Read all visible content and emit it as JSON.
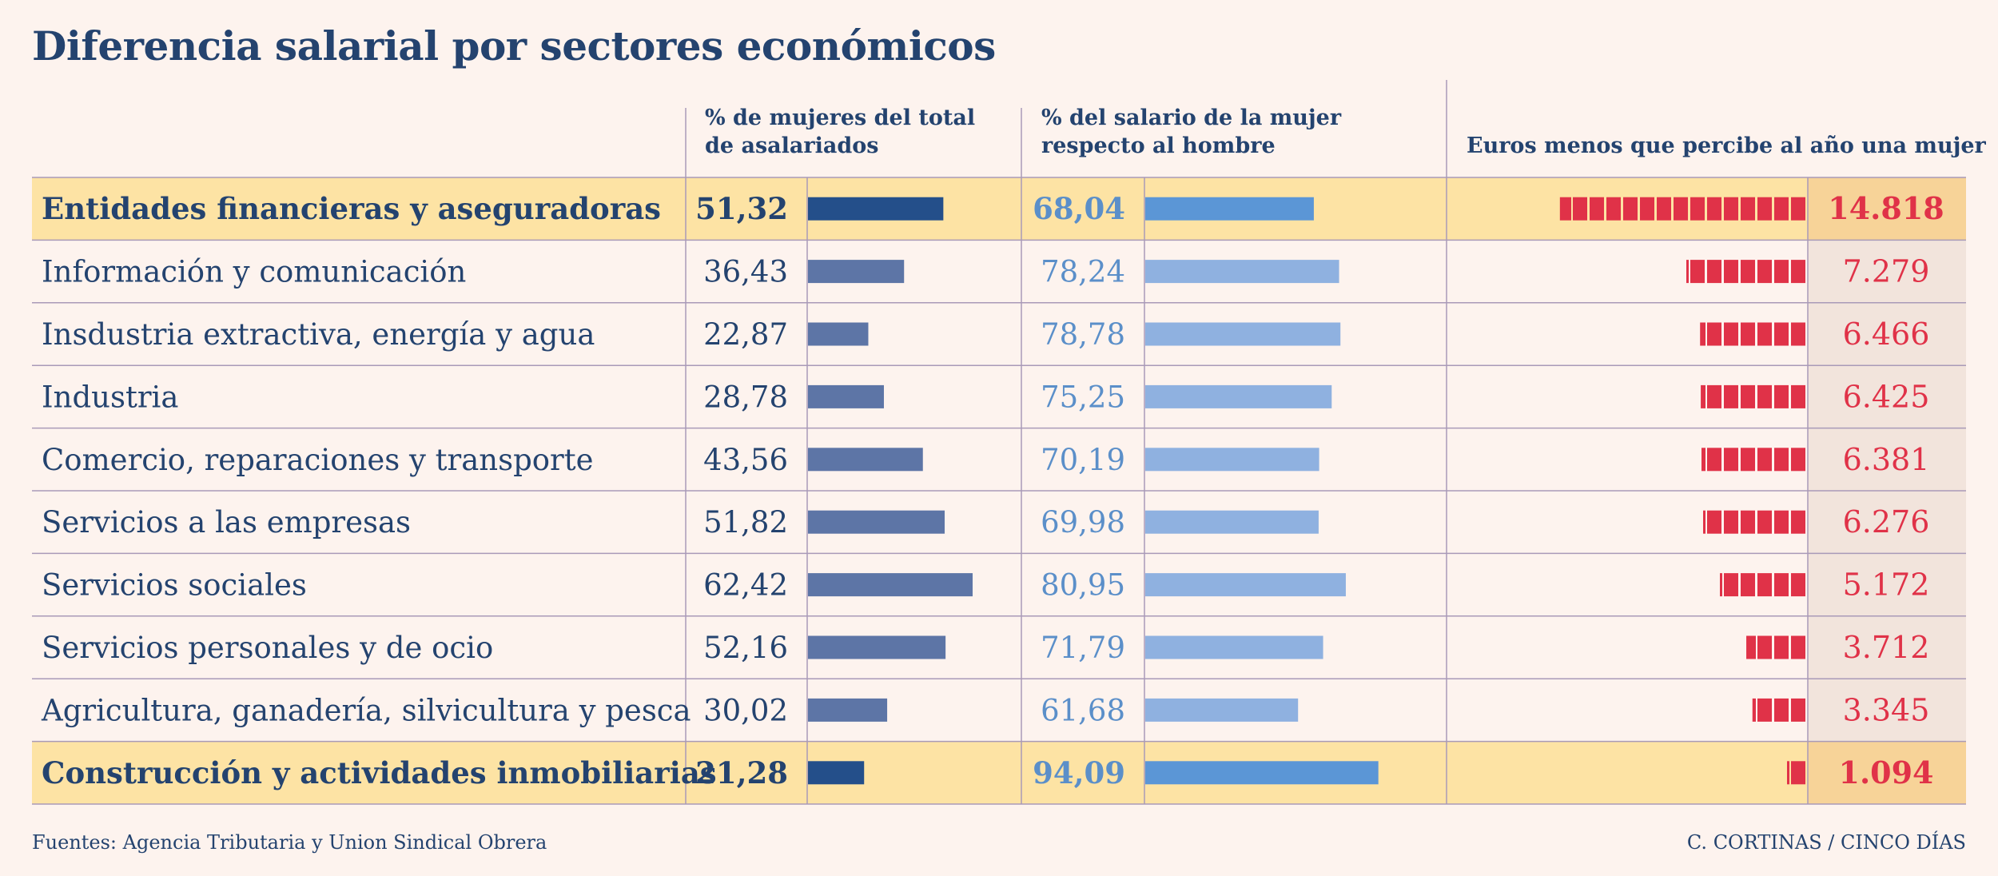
{
  "title": "Diferencia salarial por sectores económicos",
  "headers": {
    "col1_line1": "% de mujeres del total",
    "col1_line2": "de asalariados",
    "col2_line1": "% del salario de la mujer",
    "col2_line2": "respecto al hombre",
    "col3": "Euros menos que percibe al año una mujer"
  },
  "footer": {
    "source": "Fuentes: Agencia Tributaria y Union Sindical Obrera",
    "credit": "C. CORTINAS / CINCO DÍAS"
  },
  "colors": {
    "background": "#fdf3ee",
    "highlight_row": "#fde3a4",
    "highlight_value_cell": "#f7d398",
    "value_cell": "#f2e4dc",
    "bar1_normal": "#5d75a6",
    "bar1_highlight": "#244f8a",
    "bar2_normal": "#8fb1e0",
    "bar2_highlight": "#5b96d6",
    "bar3": "#e03248",
    "text": "#24436f",
    "text_light_blue": "#5b8fc9",
    "text_red": "#e03248",
    "grid": "#a99ab8"
  },
  "chart_data": {
    "type": "table",
    "columns": [
      "% de mujeres del total de asalariados",
      "% del salario de la mujer respecto al hombre",
      "Euros menos que percibe al año una mujer"
    ],
    "rows": [
      {
        "sector": "Entidades financieras y aseguradoras",
        "pct_mujeres": 51.32,
        "pct_mujeres_label": "51,32",
        "pct_salario": 68.04,
        "pct_salario_label": "68,04",
        "euros_menos": 14818,
        "euros_menos_label": "14.818",
        "highlight": true
      },
      {
        "sector": "Información y comunicación",
        "pct_mujeres": 36.43,
        "pct_mujeres_label": "36,43",
        "pct_salario": 78.24,
        "pct_salario_label": "78,24",
        "euros_menos": 7279,
        "euros_menos_label": "7.279",
        "highlight": false
      },
      {
        "sector": "Insdustria extractiva, energía y agua",
        "pct_mujeres": 22.87,
        "pct_mujeres_label": "22,87",
        "pct_salario": 78.78,
        "pct_salario_label": "78,78",
        "euros_menos": 6466,
        "euros_menos_label": "6.466",
        "highlight": false
      },
      {
        "sector": "Industria",
        "pct_mujeres": 28.78,
        "pct_mujeres_label": "28,78",
        "pct_salario": 75.25,
        "pct_salario_label": "75,25",
        "euros_menos": 6425,
        "euros_menos_label": "6.425",
        "highlight": false
      },
      {
        "sector": "Comercio, reparaciones y transporte",
        "pct_mujeres": 43.56,
        "pct_mujeres_label": "43,56",
        "pct_salario": 70.19,
        "pct_salario_label": "70,19",
        "euros_menos": 6381,
        "euros_menos_label": "6.381",
        "highlight": false
      },
      {
        "sector": "Servicios a las empresas",
        "pct_mujeres": 51.82,
        "pct_mujeres_label": "51,82",
        "pct_salario": 69.98,
        "pct_salario_label": "69,98",
        "euros_menos": 6276,
        "euros_menos_label": "6.276",
        "highlight": false
      },
      {
        "sector": "Servicios sociales",
        "pct_mujeres": 62.42,
        "pct_mujeres_label": "62,42",
        "pct_salario": 80.95,
        "pct_salario_label": "80,95",
        "euros_menos": 5172,
        "euros_menos_label": "5.172",
        "highlight": false
      },
      {
        "sector": "Servicios personales y de ocio",
        "pct_mujeres": 52.16,
        "pct_mujeres_label": "52,16",
        "pct_salario": 71.79,
        "pct_salario_label": "71,79",
        "euros_menos": 3712,
        "euros_menos_label": "3.712",
        "highlight": false
      },
      {
        "sector": "Agricultura, ganadería, silvicultura y pesca",
        "pct_mujeres": 30.02,
        "pct_mujeres_label": "30,02",
        "pct_salario": 61.68,
        "pct_salario_label": "61,68",
        "euros_menos": 3345,
        "euros_menos_label": "3.345",
        "highlight": false
      },
      {
        "sector": "Construcción y actividades inmobiliarias",
        "pct_mujeres": 21.28,
        "pct_mujeres_label": "21,28",
        "pct_salario": 94.09,
        "pct_salario_label": "94,09",
        "euros_menos": 1094,
        "euros_menos_label": "1.094",
        "highlight": true
      }
    ],
    "euros_per_block": 1000
  }
}
